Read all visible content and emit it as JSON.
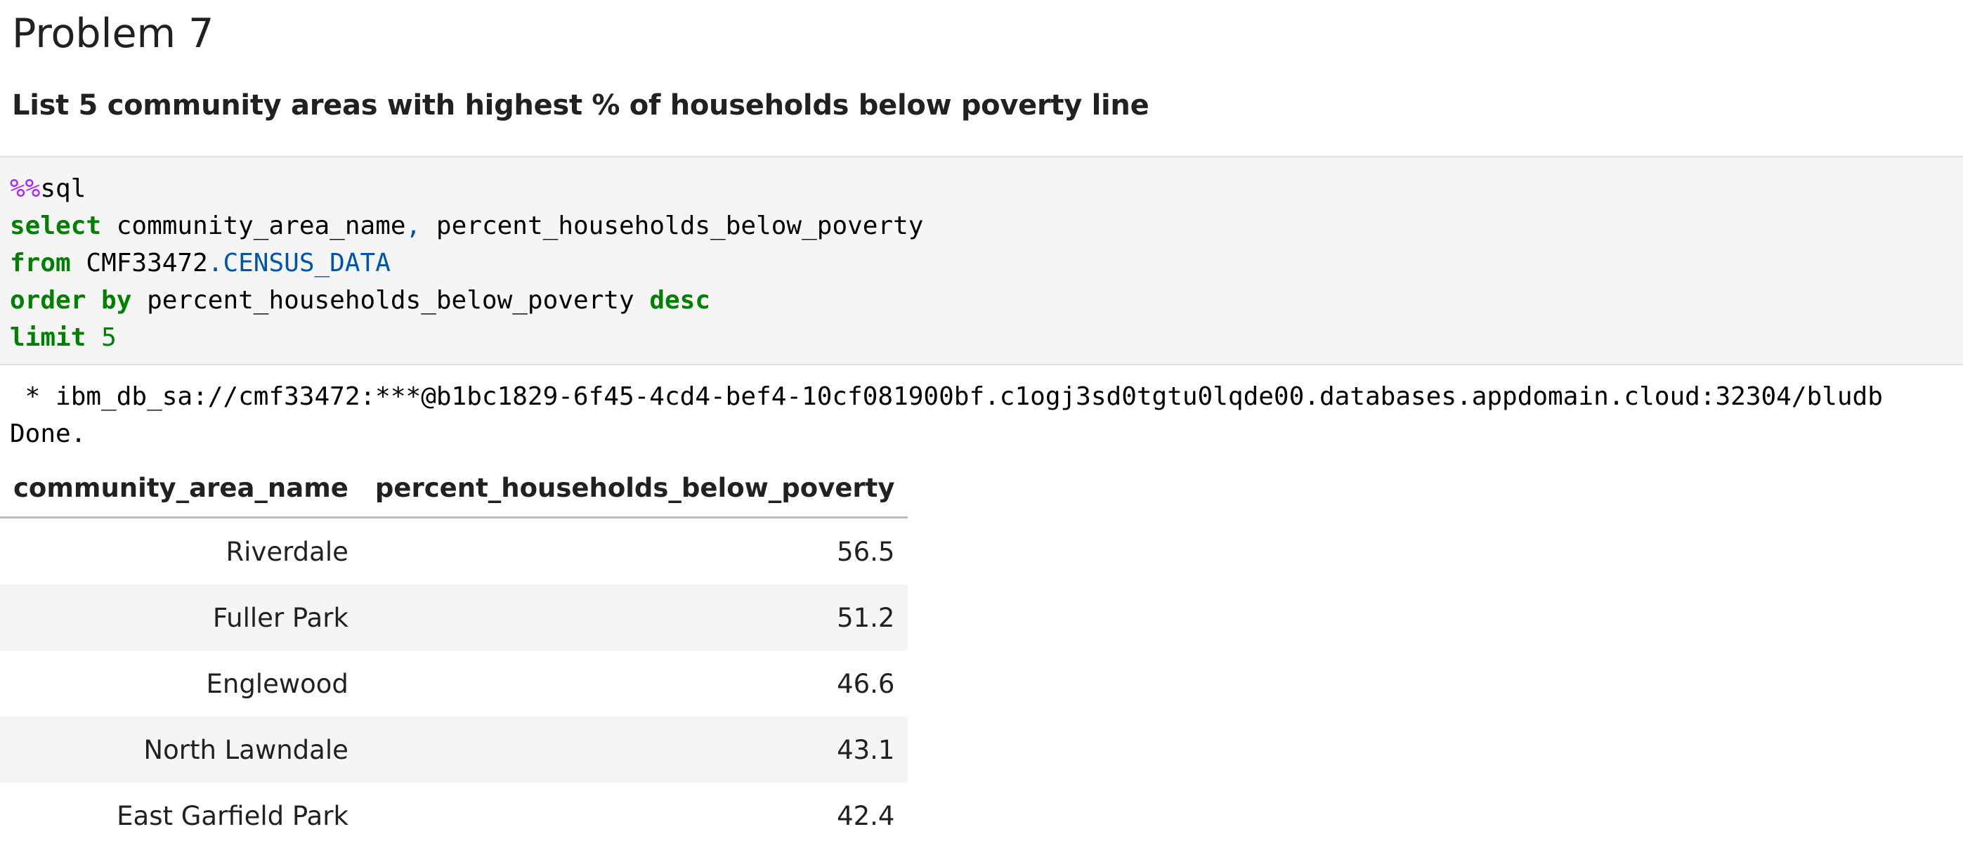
{
  "markdown": {
    "heading": "Problem 7",
    "subheading": "List 5 community areas with highest % of households below poverty line"
  },
  "code_cell": {
    "magic": "%%",
    "magic_name": "sql",
    "line1_kw": "select",
    "line1_col1": "community_area_name",
    "line1_comma": ",",
    "line1_col2": "percent_households_below_poverty",
    "line2_kw": "from",
    "line2_schema": "CMF33472",
    "line2_table": ".CENSUS_DATA",
    "line3_kw": "order by",
    "line3_col": "percent_households_below_poverty",
    "line3_dir": "desc",
    "line4_kw": "limit",
    "line4_num": "5"
  },
  "output": {
    "connection": " * ibm_db_sa://cmf33472:***@b1bc1829-6f45-4cd4-bef4-10cf081900bf.c1ogj3sd0tgtu0lqde00.databases.appdomain.cloud:32304/bludb",
    "status": "Done."
  },
  "table": {
    "columns": [
      "community_area_name",
      "percent_households_below_poverty"
    ],
    "rows": [
      [
        "Riverdale",
        "56.5"
      ],
      [
        "Fuller Park",
        "51.2"
      ],
      [
        "Englewood",
        "46.6"
      ],
      [
        "North Lawndale",
        "43.1"
      ],
      [
        "East Garfield Park",
        "42.4"
      ]
    ]
  }
}
